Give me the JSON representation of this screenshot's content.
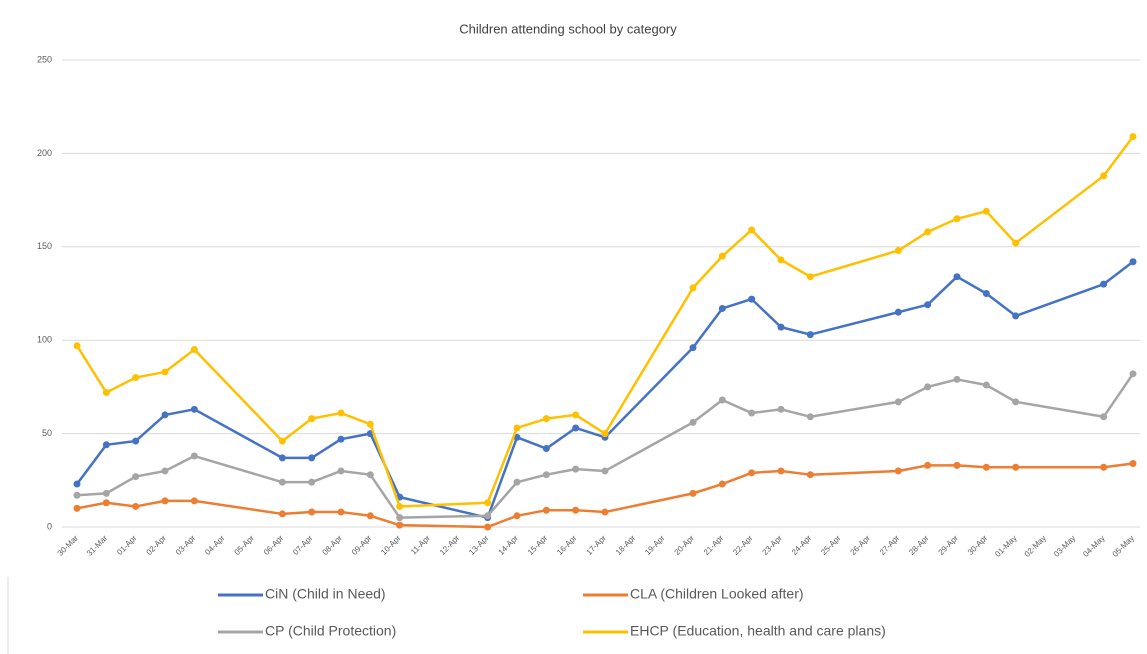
{
  "chart_data": {
    "type": "line",
    "title": "Children attending school by category",
    "categories": [
      "30-Mar",
      "31-Mar",
      "01-Apr",
      "02-Apr",
      "03-Apr",
      "04-Apr",
      "05-Apr",
      "06-Apr",
      "07-Apr",
      "08-Apr",
      "09-Apr",
      "10-Apr",
      "11-Apr",
      "12-Apr",
      "13-Apr",
      "14-Apr",
      "15-Apr",
      "16-Apr",
      "17-Apr",
      "18-Apr",
      "19-Apr",
      "20-Apr",
      "21-Apr",
      "22-Apr",
      "23-Apr",
      "24-Apr",
      "25-Apr",
      "26-Apr",
      "27-Apr",
      "28-Apr",
      "29-Apr",
      "30-Apr",
      "01-May",
      "02-May",
      "03-May",
      "04-May",
      "05-May"
    ],
    "series": [
      {
        "name": "CiN (Child in Need)",
        "color": "#4472c4",
        "values": [
          23,
          44,
          46,
          60,
          63,
          null,
          null,
          37,
          37,
          47,
          50,
          16,
          null,
          null,
          5,
          48,
          42,
          53,
          48,
          null,
          null,
          96,
          117,
          122,
          107,
          103,
          null,
          null,
          115,
          119,
          134,
          125,
          113,
          null,
          null,
          130,
          142
        ]
      },
      {
        "name": "CLA (Children Looked after)",
        "color": "#ed7d31",
        "values": [
          10,
          13,
          11,
          14,
          14,
          null,
          null,
          7,
          8,
          8,
          6,
          1,
          null,
          null,
          0,
          6,
          9,
          9,
          8,
          null,
          null,
          18,
          23,
          29,
          30,
          28,
          null,
          null,
          30,
          33,
          33,
          32,
          32,
          null,
          null,
          32,
          34
        ]
      },
      {
        "name": "CP (Child Protection)",
        "color": "#a5a5a5",
        "values": [
          17,
          18,
          27,
          30,
          38,
          null,
          null,
          24,
          24,
          30,
          28,
          5,
          null,
          null,
          6,
          24,
          28,
          31,
          30,
          null,
          null,
          56,
          68,
          61,
          63,
          59,
          null,
          null,
          67,
          75,
          79,
          76,
          67,
          null,
          null,
          59,
          82
        ]
      },
      {
        "name": "EHCP (Education, health and care plans)",
        "color": "#ffc000",
        "values": [
          97,
          72,
          80,
          83,
          95,
          null,
          null,
          46,
          58,
          61,
          55,
          11,
          null,
          null,
          13,
          53,
          58,
          60,
          50,
          null,
          null,
          128,
          145,
          159,
          143,
          134,
          null,
          null,
          148,
          158,
          165,
          169,
          152,
          null,
          null,
          188,
          209
        ]
      }
    ],
    "ylim": [
      0,
      250
    ],
    "yticks": [
      0,
      50,
      100,
      150,
      200,
      250
    ],
    "grid": true,
    "legend": "bottom"
  }
}
